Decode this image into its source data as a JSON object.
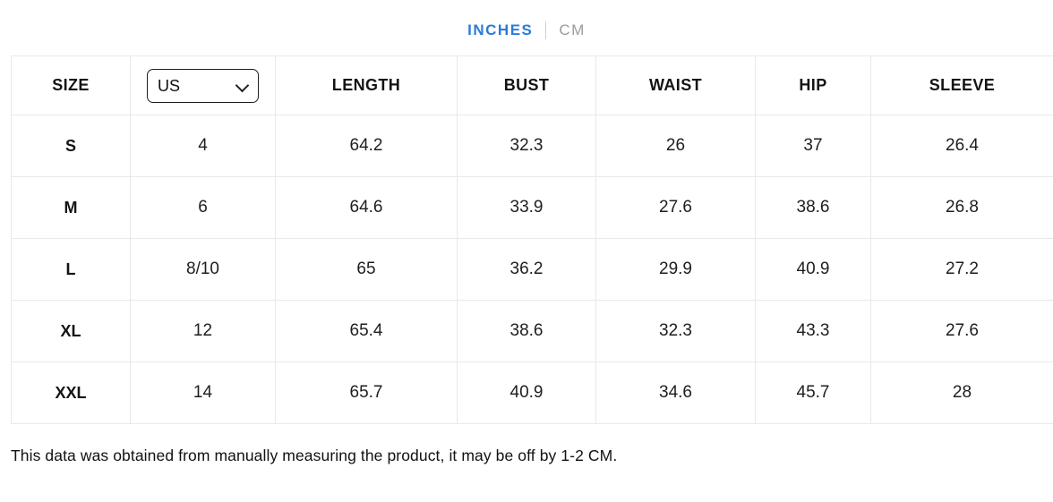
{
  "unit_toggle": {
    "inches_label": "INCHES",
    "cm_label": "CM",
    "active_color": "#2b7bd9",
    "inactive_color": "#9b9b9b"
  },
  "size_chart": {
    "columns": [
      "SIZE",
      "LENGTH",
      "BUST",
      "WAIST",
      "HIP",
      "SLEEVE"
    ],
    "region_select": {
      "value": "US"
    },
    "rows": [
      {
        "size": "S",
        "region": "4",
        "length": "64.2",
        "bust": "32.3",
        "waist": "26",
        "hip": "37",
        "sleeve": "26.4"
      },
      {
        "size": "M",
        "region": "6",
        "length": "64.6",
        "bust": "33.9",
        "waist": "27.6",
        "hip": "38.6",
        "sleeve": "26.8"
      },
      {
        "size": "L",
        "region": "8/10",
        "length": "65",
        "bust": "36.2",
        "waist": "29.9",
        "hip": "40.9",
        "sleeve": "27.2"
      },
      {
        "size": "XL",
        "region": "12",
        "length": "65.4",
        "bust": "38.6",
        "waist": "32.3",
        "hip": "43.3",
        "sleeve": "27.6"
      },
      {
        "size": "XXL",
        "region": "14",
        "length": "65.7",
        "bust": "40.9",
        "waist": "34.6",
        "hip": "45.7",
        "sleeve": "28"
      }
    ]
  },
  "footer_note": "This data was obtained from manually measuring the product, it may be off by 1-2 CM."
}
